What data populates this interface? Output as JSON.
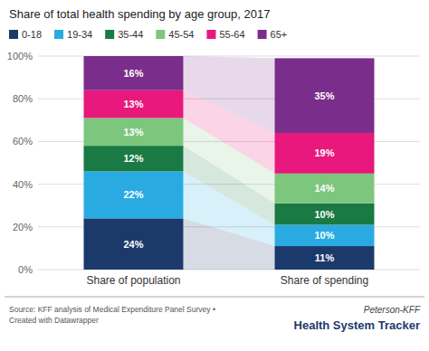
{
  "chart_data": {
    "type": "bar",
    "stacked": true,
    "title": "Share of total health spending by age group, 2017",
    "categories": [
      "Share of population",
      "Share of spending"
    ],
    "series": [
      {
        "name": "0-18",
        "color": "#1b3a6b",
        "values": [
          24,
          11
        ],
        "value_labels": [
          "24%",
          "11%"
        ]
      },
      {
        "name": "19-34",
        "color": "#29abe2",
        "values": [
          22,
          10
        ],
        "value_labels": [
          "22%",
          "10%"
        ]
      },
      {
        "name": "35-44",
        "color": "#1a7a44",
        "values": [
          12,
          10
        ],
        "value_labels": [
          "12%",
          "10%"
        ]
      },
      {
        "name": "45-54",
        "color": "#7dc67e",
        "values": [
          13,
          14
        ],
        "value_labels": [
          "13%",
          "14%"
        ]
      },
      {
        "name": "55-64",
        "color": "#e8187c",
        "values": [
          13,
          19
        ],
        "value_labels": [
          "13%",
          "19%"
        ]
      },
      {
        "name": "65+",
        "color": "#7b2d8b",
        "values": [
          16,
          35
        ],
        "value_labels": [
          "16%",
          "35%"
        ]
      }
    ],
    "ylim": [
      0,
      100
    ],
    "yticks": [
      {
        "value": 0,
        "label": "0%"
      },
      {
        "value": 20,
        "label": "20%"
      },
      {
        "value": 40,
        "label": "40%"
      },
      {
        "value": 60,
        "label": "60%"
      },
      {
        "value": 80,
        "label": "80%"
      },
      {
        "value": 100,
        "label": "100%"
      }
    ],
    "grid": true,
    "legend": "top",
    "data_labels": true,
    "annotations": [
      "Source: KFF analysis of Medical Expenditure Panel Survey •",
      "Created with Datawrapper",
      "Peterson-KFF",
      "Health System Tracker"
    ]
  }
}
